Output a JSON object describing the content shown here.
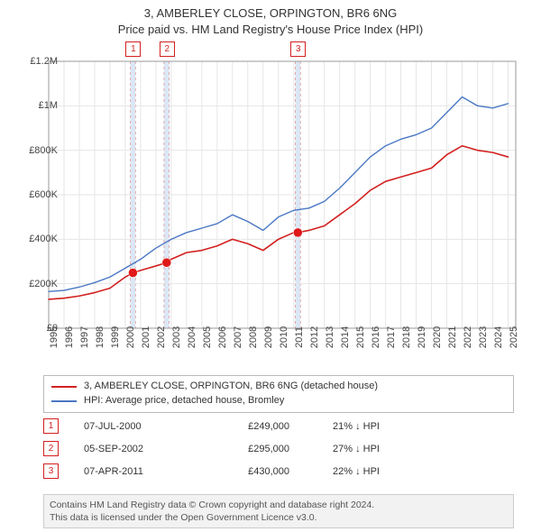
{
  "title_line1": "3, AMBERLEY CLOSE, ORPINGTON, BR6 6NG",
  "title_line2": "Price paid vs. HM Land Registry's House Price Index (HPI)",
  "chart": {
    "type": "line",
    "background_color": "#ffffff",
    "grid_color": "#e6e6e6",
    "axis_color": "#999999",
    "xlim": [
      1995,
      2025.5
    ],
    "ylim": [
      0,
      1200000
    ],
    "ytick_step": 200000,
    "ytick_labels": [
      "£0",
      "£200K",
      "£400K",
      "£600K",
      "£800K",
      "£1M",
      "£1.2M"
    ],
    "xtick_labels": [
      "1995",
      "1996",
      "1997",
      "1998",
      "1999",
      "2000",
      "2001",
      "2002",
      "2003",
      "2004",
      "2005",
      "2006",
      "2007",
      "2008",
      "2009",
      "2010",
      "2011",
      "2012",
      "2013",
      "2014",
      "2015",
      "2016",
      "2017",
      "2018",
      "2019",
      "2020",
      "2021",
      "2022",
      "2023",
      "2024",
      "2025"
    ],
    "series": [
      {
        "name": "3, AMBERLEY CLOSE, ORPINGTON, BR6 6NG (detached house)",
        "color": "#d32020",
        "line_width": 1.6,
        "points": [
          [
            1995,
            130000
          ],
          [
            1996,
            135000
          ],
          [
            1997,
            145000
          ],
          [
            1998,
            160000
          ],
          [
            1999,
            180000
          ],
          [
            2000,
            230000
          ],
          [
            2000.5,
            249000
          ],
          [
            2001,
            260000
          ],
          [
            2002,
            280000
          ],
          [
            2002.7,
            295000
          ],
          [
            2003,
            310000
          ],
          [
            2004,
            340000
          ],
          [
            2005,
            350000
          ],
          [
            2006,
            370000
          ],
          [
            2007,
            400000
          ],
          [
            2008,
            380000
          ],
          [
            2009,
            350000
          ],
          [
            2010,
            400000
          ],
          [
            2011,
            430000
          ],
          [
            2011.27,
            430000
          ],
          [
            2012,
            440000
          ],
          [
            2013,
            460000
          ],
          [
            2014,
            510000
          ],
          [
            2015,
            560000
          ],
          [
            2016,
            620000
          ],
          [
            2017,
            660000
          ],
          [
            2018,
            680000
          ],
          [
            2019,
            700000
          ],
          [
            2020,
            720000
          ],
          [
            2021,
            780000
          ],
          [
            2022,
            820000
          ],
          [
            2023,
            800000
          ],
          [
            2024,
            790000
          ],
          [
            2025,
            770000
          ]
        ]
      },
      {
        "name": "HPI: Average price, detached house, Bromley",
        "color": "#4a78c4",
        "line_width": 1.4,
        "points": [
          [
            1995,
            165000
          ],
          [
            1996,
            170000
          ],
          [
            1997,
            185000
          ],
          [
            1998,
            205000
          ],
          [
            1999,
            230000
          ],
          [
            2000,
            270000
          ],
          [
            2001,
            310000
          ],
          [
            2002,
            360000
          ],
          [
            2003,
            400000
          ],
          [
            2004,
            430000
          ],
          [
            2005,
            450000
          ],
          [
            2006,
            470000
          ],
          [
            2007,
            510000
          ],
          [
            2008,
            480000
          ],
          [
            2009,
            440000
          ],
          [
            2010,
            500000
          ],
          [
            2011,
            530000
          ],
          [
            2012,
            540000
          ],
          [
            2013,
            570000
          ],
          [
            2014,
            630000
          ],
          [
            2015,
            700000
          ],
          [
            2016,
            770000
          ],
          [
            2017,
            820000
          ],
          [
            2018,
            850000
          ],
          [
            2019,
            870000
          ],
          [
            2020,
            900000
          ],
          [
            2021,
            970000
          ],
          [
            2022,
            1040000
          ],
          [
            2023,
            1000000
          ],
          [
            2024,
            990000
          ],
          [
            2025,
            1010000
          ]
        ]
      }
    ],
    "sale_markers": [
      {
        "x": 2000.5,
        "y": 249000
      },
      {
        "x": 2002.7,
        "y": 295000
      },
      {
        "x": 2011.27,
        "y": 430000
      }
    ],
    "marker_color": "#e01818",
    "marker_size": 5,
    "event_bands": [
      {
        "x": 2000.5,
        "label": "1"
      },
      {
        "x": 2002.7,
        "label": "2"
      },
      {
        "x": 2011.27,
        "label": "3"
      }
    ],
    "band_fill": "#dbe7f5",
    "band_dash_color": "#d99",
    "band_width": 0.34
  },
  "legend": {
    "items": [
      {
        "color": "#d32020",
        "label": "3, AMBERLEY CLOSE, ORPINGTON, BR6 6NG (detached house)"
      },
      {
        "color": "#4a78c4",
        "label": "HPI: Average price, detached house, Bromley"
      }
    ]
  },
  "events": [
    {
      "badge": "1",
      "date": "07-JUL-2000",
      "price": "£249,000",
      "pct": "21% ↓ HPI"
    },
    {
      "badge": "2",
      "date": "05-SEP-2002",
      "price": "£295,000",
      "pct": "27% ↓ HPI"
    },
    {
      "badge": "3",
      "date": "07-APR-2011",
      "price": "£430,000",
      "pct": "22% ↓ HPI"
    }
  ],
  "attribution_line1": "Contains HM Land Registry data © Crown copyright and database right 2024.",
  "attribution_line2": "This data is licensed under the Open Government Licence v3.0."
}
